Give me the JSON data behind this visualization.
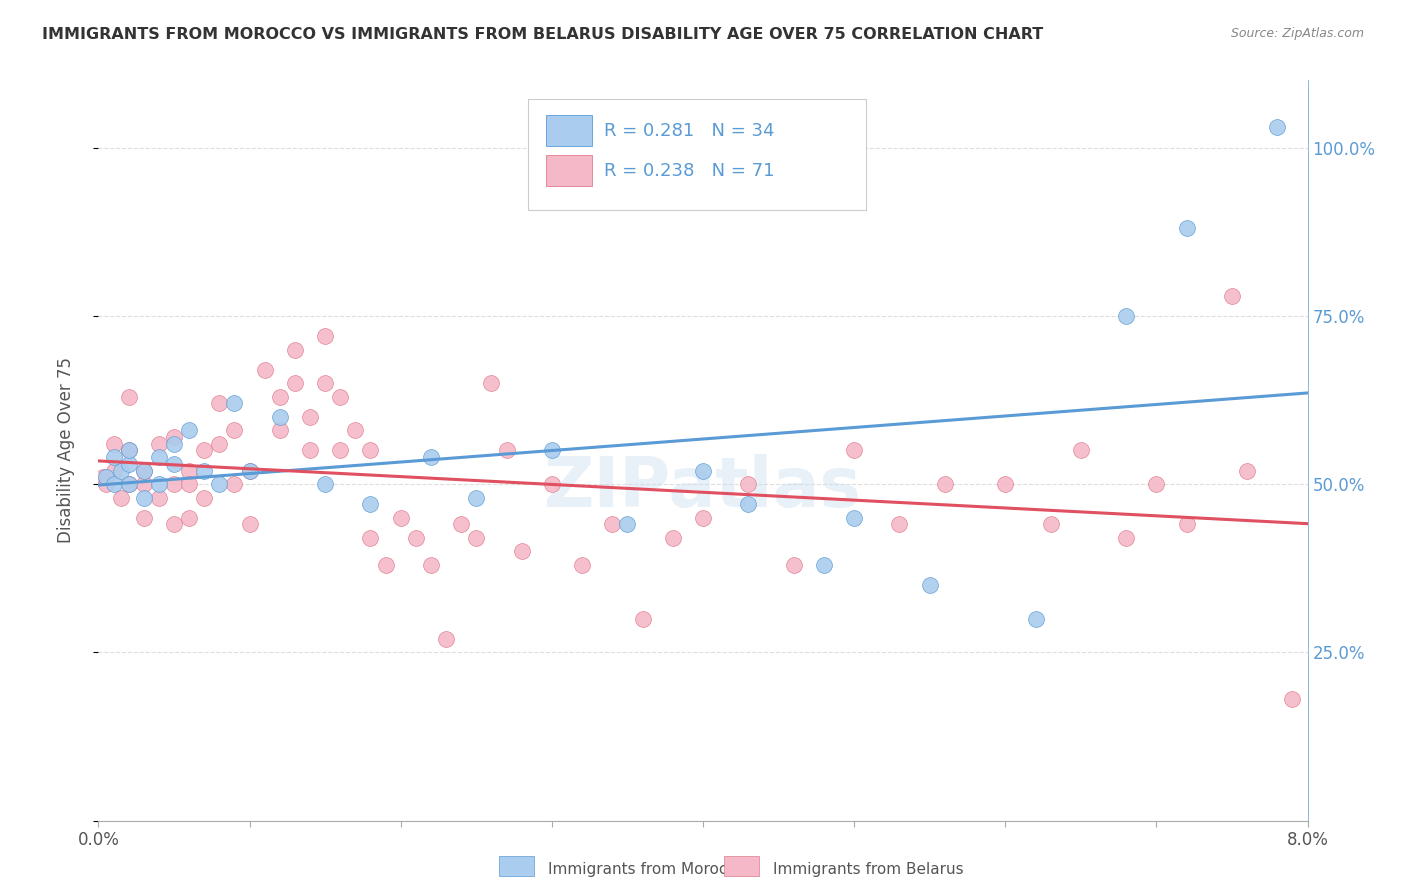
{
  "title": "IMMIGRANTS FROM MOROCCO VS IMMIGRANTS FROM BELARUS DISABILITY AGE OVER 75 CORRELATION CHART",
  "source": "Source: ZipAtlas.com",
  "ylabel": "Disability Age Over 75",
  "legend_morocco": {
    "R": "0.281",
    "N": "34"
  },
  "legend_belarus": {
    "R": "0.238",
    "N": "71"
  },
  "watermark": "ZIPatlas",
  "morocco_color": "#aaccee",
  "morocco_edge_color": "#5b9bd5",
  "belarus_color": "#f4b8c8",
  "belarus_edge_color": "#e07b8a",
  "trendline_morocco_color": "#5b9bd5",
  "trendline_belarus_color": "#e05060",
  "xlim": [
    0.0,
    0.08
  ],
  "ylim": [
    0.0,
    1.1
  ],
  "background_color": "#ffffff",
  "grid_color": "#dddddd",
  "morocco_x": [
    0.0005,
    0.001,
    0.001,
    0.0015,
    0.002,
    0.002,
    0.002,
    0.003,
    0.003,
    0.004,
    0.004,
    0.005,
    0.005,
    0.006,
    0.007,
    0.008,
    0.009,
    0.01,
    0.012,
    0.015,
    0.018,
    0.022,
    0.025,
    0.03,
    0.035,
    0.04,
    0.043,
    0.048,
    0.05,
    0.055,
    0.062,
    0.068,
    0.072,
    0.078
  ],
  "morocco_y": [
    0.51,
    0.5,
    0.54,
    0.52,
    0.53,
    0.55,
    0.5,
    0.52,
    0.48,
    0.54,
    0.5,
    0.53,
    0.56,
    0.58,
    0.52,
    0.5,
    0.62,
    0.52,
    0.6,
    0.5,
    0.47,
    0.54,
    0.48,
    0.55,
    0.44,
    0.52,
    0.47,
    0.38,
    0.45,
    0.35,
    0.3,
    0.75,
    0.88,
    1.03
  ],
  "belarus_x": [
    0.0003,
    0.0005,
    0.001,
    0.001,
    0.0015,
    0.002,
    0.002,
    0.002,
    0.003,
    0.003,
    0.003,
    0.004,
    0.004,
    0.005,
    0.005,
    0.005,
    0.006,
    0.006,
    0.006,
    0.007,
    0.007,
    0.008,
    0.008,
    0.009,
    0.009,
    0.01,
    0.01,
    0.011,
    0.012,
    0.012,
    0.013,
    0.013,
    0.014,
    0.014,
    0.015,
    0.015,
    0.016,
    0.016,
    0.017,
    0.018,
    0.018,
    0.019,
    0.02,
    0.021,
    0.022,
    0.023,
    0.024,
    0.025,
    0.026,
    0.027,
    0.028,
    0.03,
    0.032,
    0.034,
    0.036,
    0.038,
    0.04,
    0.043,
    0.046,
    0.05,
    0.053,
    0.056,
    0.06,
    0.063,
    0.065,
    0.068,
    0.07,
    0.072,
    0.075,
    0.076,
    0.079
  ],
  "belarus_y": [
    0.51,
    0.5,
    0.52,
    0.56,
    0.48,
    0.5,
    0.55,
    0.63,
    0.5,
    0.45,
    0.52,
    0.56,
    0.48,
    0.5,
    0.44,
    0.57,
    0.52,
    0.5,
    0.45,
    0.55,
    0.48,
    0.62,
    0.56,
    0.58,
    0.5,
    0.52,
    0.44,
    0.67,
    0.63,
    0.58,
    0.7,
    0.65,
    0.6,
    0.55,
    0.65,
    0.72,
    0.63,
    0.55,
    0.58,
    0.55,
    0.42,
    0.38,
    0.45,
    0.42,
    0.38,
    0.27,
    0.44,
    0.42,
    0.65,
    0.55,
    0.4,
    0.5,
    0.38,
    0.44,
    0.3,
    0.42,
    0.45,
    0.5,
    0.38,
    0.55,
    0.44,
    0.5,
    0.5,
    0.44,
    0.55,
    0.42,
    0.5,
    0.44,
    0.78,
    0.52,
    0.18
  ],
  "right_ytick_labels": [
    "",
    "25.0%",
    "50.0%",
    "75.0%",
    "100.0%"
  ],
  "right_ytick_vals": [
    0.0,
    0.25,
    0.5,
    0.75,
    1.0
  ],
  "right_axis_color": "#5b9bd5",
  "text_color": "#333333",
  "axis_label_color": "#555555"
}
